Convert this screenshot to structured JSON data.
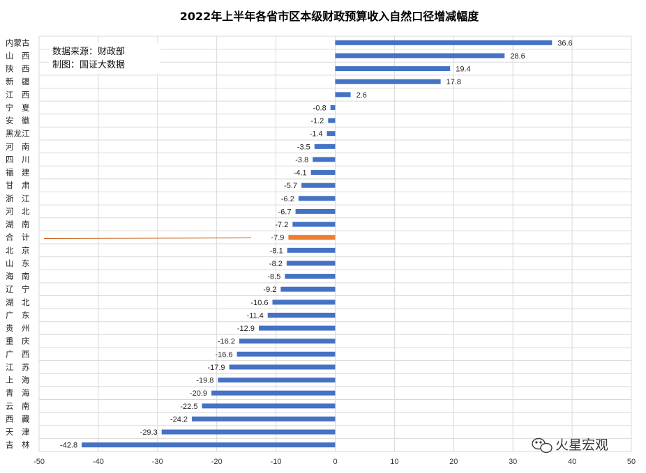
{
  "chart_data": {
    "type": "bar",
    "orientation": "horizontal",
    "title": "2022年上半年各省市区本级财政预算收入自然口径增减幅度",
    "categories": [
      "内蒙古",
      "山　西",
      "陕　西",
      "新　疆",
      "江　西",
      "宁　夏",
      "安　徽",
      "黑龙江",
      "河　南",
      "四　川",
      "福　建",
      "甘　肃",
      "浙　江",
      "河　北",
      "湖　南",
      "合　计",
      "北　京",
      "山　东",
      "海　南",
      "辽　宁",
      "湖　北",
      "广　东",
      "贵　州",
      "重　庆",
      "广　西",
      "江　苏",
      "上　海",
      "青　海",
      "云　南",
      "西　藏",
      "天　津",
      "吉　林"
    ],
    "values": [
      36.6,
      28.6,
      19.4,
      17.8,
      2.6,
      -0.8,
      -1.2,
      -1.4,
      -3.5,
      -3.8,
      -4.1,
      -5.7,
      -6.2,
      -6.7,
      -7.2,
      -7.9,
      -8.1,
      -8.2,
      -8.5,
      -9.2,
      -10.6,
      -11.4,
      -12.9,
      -16.2,
      -16.6,
      -17.9,
      -19.8,
      -20.9,
      -22.5,
      -24.2,
      -29.3,
      -42.8
    ],
    "value_labels": [
      "36.6",
      "28.6",
      "19.4",
      "17.8",
      "2.6",
      "-0.8",
      "-1.2",
      "-1.4",
      "-3.5",
      "-3.8",
      "-4.1",
      "-5.7",
      "-6.2",
      "-6.7",
      "-7.2",
      "-7.9",
      "-8.1",
      "-8.2",
      "-8.5",
      "-9.2",
      "-10.6",
      "-11.4",
      "-12.9",
      "-16.2",
      "-16.6",
      "-17.9",
      "-19.8",
      "-20.9",
      "-22.5",
      "-24.2",
      "-29.3",
      "-42.8"
    ],
    "highlight_index": 15,
    "xlim": [
      -50,
      50
    ],
    "xticks": [
      -50,
      -40,
      -30,
      -20,
      -10,
      0,
      10,
      20,
      30,
      40,
      50
    ],
    "xtick_labels": [
      "-50",
      "-40",
      "-30",
      "-20",
      "-10",
      "0",
      "10",
      "20",
      "30",
      "40",
      "50"
    ],
    "grid": true,
    "colors": {
      "bar": "#4472c4",
      "highlight": "#ed7d31",
      "grid": "#d9d9d9"
    },
    "annotations": {
      "source": "数据来源：财政部",
      "maker": "制图：国证大数据"
    }
  },
  "watermark": {
    "text": "火星宏观",
    "icon": "wechat-icon"
  }
}
